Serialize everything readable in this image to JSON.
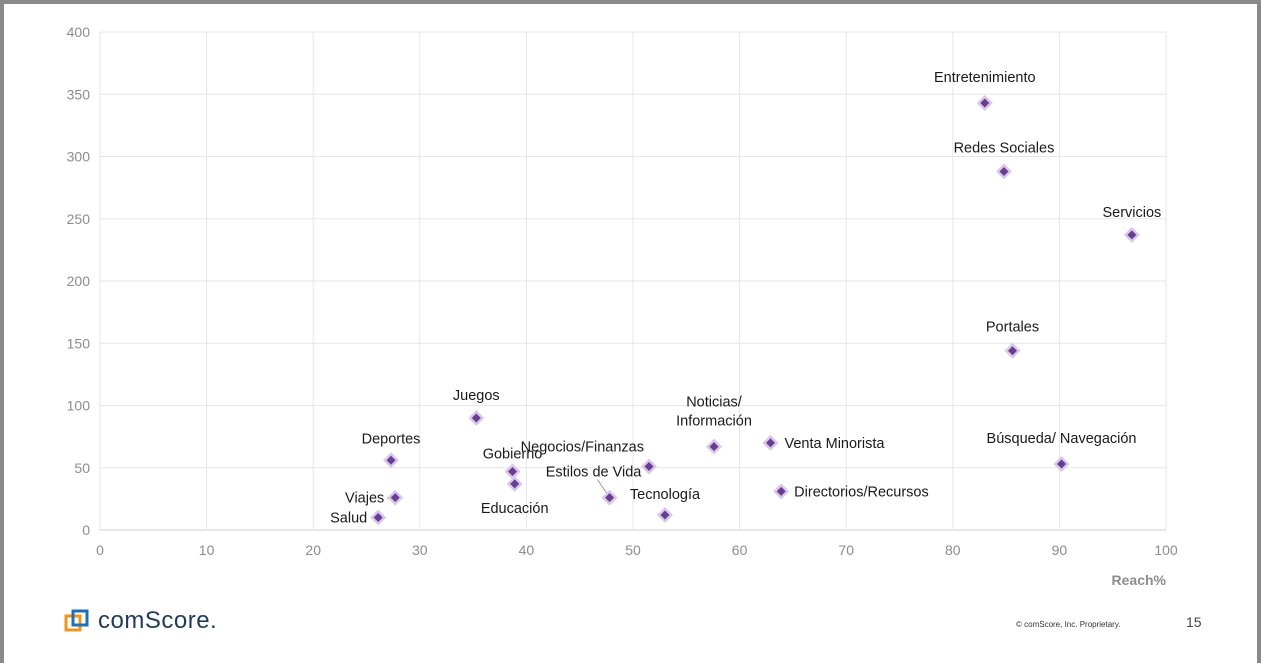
{
  "chart_data": {
    "type": "scatter",
    "title": "",
    "xlabel": "Reach%",
    "ylabel": "",
    "xlim": [
      0,
      100
    ],
    "ylim": [
      0,
      400
    ],
    "x_ticks": [
      "0",
      "10",
      "20",
      "30",
      "40",
      "50",
      "60",
      "70",
      "80",
      "90",
      "100"
    ],
    "y_ticks": [
      "0",
      "50",
      "100",
      "150",
      "200",
      "250",
      "300",
      "350",
      "400"
    ],
    "grid": true,
    "marker_color": "#6a3d8f",
    "marker_halo_color": "#d8c8ee",
    "points": [
      {
        "label": "Entretenimiento",
        "x": 83.0,
        "y": 343
      },
      {
        "label": "Redes Sociales",
        "x": 84.8,
        "y": 288
      },
      {
        "label": "Servicios",
        "x": 96.8,
        "y": 237
      },
      {
        "label": "Portales",
        "x": 85.6,
        "y": 144
      },
      {
        "label": "Búsqueda/ Navegación",
        "x": 90.2,
        "y": 53
      },
      {
        "label": "Venta Minorista",
        "x": 62.9,
        "y": 70
      },
      {
        "label": "Directorios/Recursos",
        "x": 63.9,
        "y": 31
      },
      {
        "label": "Noticias/\nInformación",
        "x": 57.6,
        "y": 67
      },
      {
        "label": "Negocios/Finanzas",
        "x": 51.5,
        "y": 51
      },
      {
        "label": "Tecnología",
        "x": 53.0,
        "y": 12
      },
      {
        "label": "Estilos de Vida",
        "x": 47.8,
        "y": 26
      },
      {
        "label": "Juegos",
        "x": 35.3,
        "y": 90
      },
      {
        "label": "Gobierno",
        "x": 38.7,
        "y": 47
      },
      {
        "label": "Educación",
        "x": 38.9,
        "y": 37
      },
      {
        "label": "Deportes",
        "x": 27.3,
        "y": 56
      },
      {
        "label": "Viajes",
        "x": 27.7,
        "y": 26
      },
      {
        "label": "Salud",
        "x": 26.1,
        "y": 10
      }
    ]
  },
  "footer": {
    "logo_text": "comScore.",
    "copyright": "© comScore, Inc. Proprietary.",
    "page_number": "15"
  },
  "colors": {
    "logo_orange": "#f0941f",
    "logo_blue": "#1f6fb5",
    "grid": "#e6e6e6",
    "frame": "#8a8a8a"
  }
}
